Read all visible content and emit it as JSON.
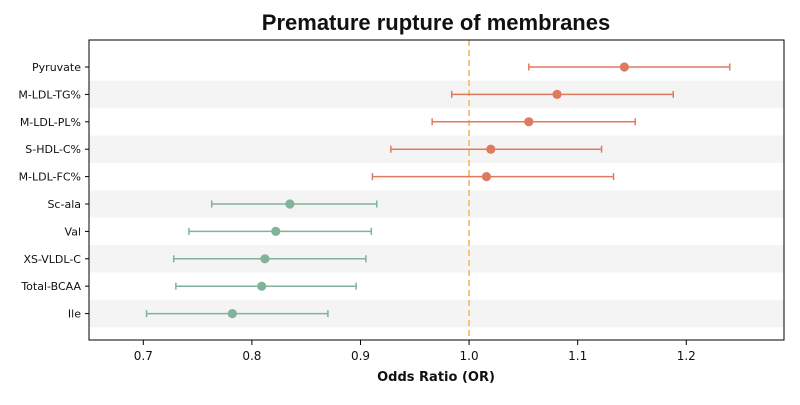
{
  "chart_data": {
    "type": "forest",
    "title": "Premature rupture of membranes",
    "xlabel": "Odds Ratio (OR)",
    "ylabel": "",
    "xlim": [
      0.65,
      1.29
    ],
    "xticks": [
      "0.7",
      "0.8",
      "0.9",
      "1.0",
      "1.1",
      "1.2"
    ],
    "reference_line": {
      "x": 1.0,
      "style": "dashed",
      "color": "#f5c06a"
    },
    "grid": false,
    "row_banding": true,
    "colors": {
      "positive": "#e07a5f",
      "negative": "#81b29a",
      "band": "#f4f4f4"
    },
    "rows": [
      {
        "label": "Pyruvate",
        "or": 1.143,
        "lower": 1.055,
        "upper": 1.24,
        "group": "positive"
      },
      {
        "label": "M-LDL-TG%",
        "or": 1.081,
        "lower": 0.984,
        "upper": 1.188,
        "group": "positive"
      },
      {
        "label": "M-LDL-PL%",
        "or": 1.055,
        "lower": 0.966,
        "upper": 1.153,
        "group": "positive"
      },
      {
        "label": "S-HDL-C%",
        "or": 1.02,
        "lower": 0.928,
        "upper": 1.122,
        "group": "positive"
      },
      {
        "label": "M-LDL-FC%",
        "or": 1.016,
        "lower": 0.911,
        "upper": 1.133,
        "group": "positive"
      },
      {
        "label": "Sc-ala",
        "or": 0.835,
        "lower": 0.763,
        "upper": 0.915,
        "group": "negative"
      },
      {
        "label": "Val",
        "or": 0.822,
        "lower": 0.742,
        "upper": 0.91,
        "group": "negative"
      },
      {
        "label": "XS-VLDL-C",
        "or": 0.812,
        "lower": 0.728,
        "upper": 0.905,
        "group": "negative"
      },
      {
        "label": "Total-BCAA",
        "or": 0.809,
        "lower": 0.73,
        "upper": 0.896,
        "group": "negative"
      },
      {
        "label": "Ile",
        "or": 0.782,
        "lower": 0.703,
        "upper": 0.87,
        "group": "negative"
      }
    ]
  }
}
